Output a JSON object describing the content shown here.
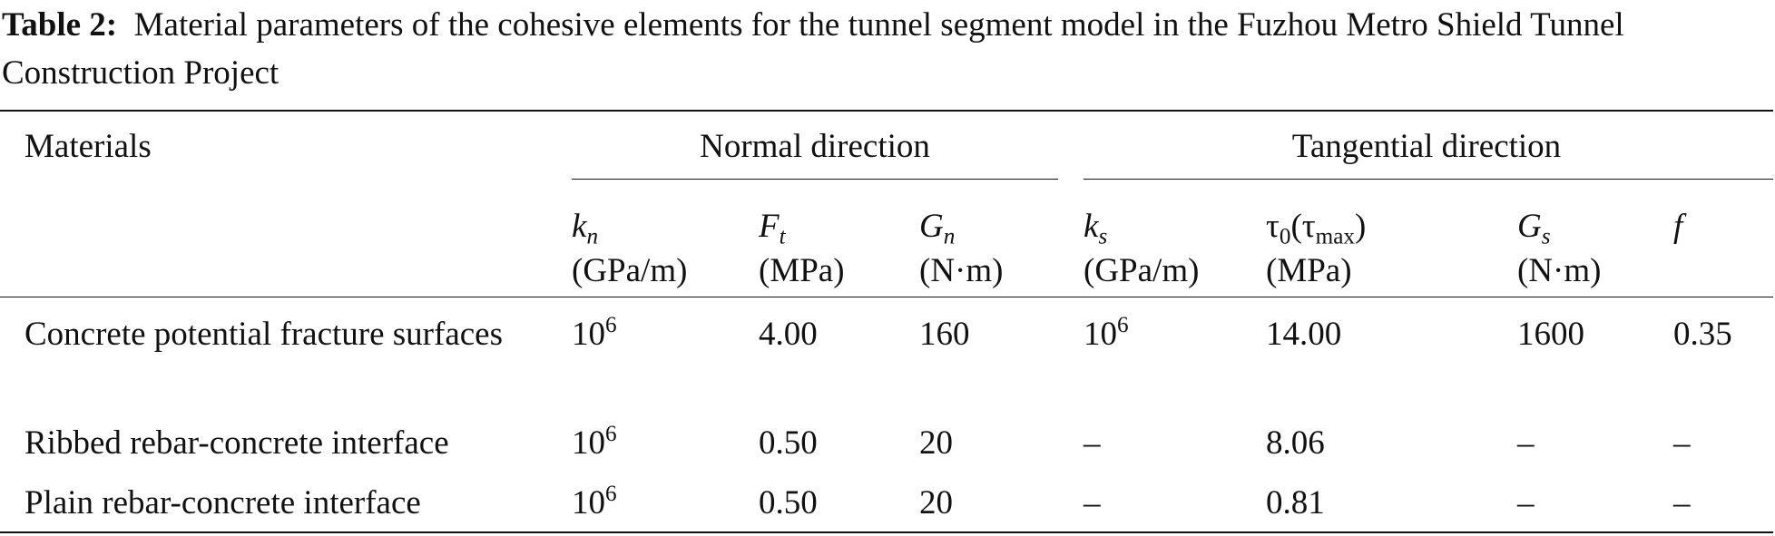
{
  "caption": {
    "label": "Table 2:",
    "text": "Material parameters of the cohesive elements for the tunnel segment model in the Fuzhou Metro Shield Tunnel Construction Project"
  },
  "table": {
    "header": {
      "materials": "Materials",
      "groups": [
        "Normal direction",
        "Tangential direction"
      ],
      "columns": [
        {
          "symbol": [
            {
              "t": "k",
              "style": "i"
            },
            {
              "t": "n",
              "style": "sub-i"
            }
          ],
          "unit": "(GPa/m)"
        },
        {
          "symbol": [
            {
              "t": "F",
              "style": "i"
            },
            {
              "t": "t",
              "style": "sub-i"
            }
          ],
          "unit": "(MPa)"
        },
        {
          "symbol": [
            {
              "t": "G",
              "style": "i"
            },
            {
              "t": "n",
              "style": "sub-i"
            }
          ],
          "unit": "(N·m)"
        },
        {
          "symbol": [
            {
              "t": "k",
              "style": "i"
            },
            {
              "t": "s",
              "style": "sub-i"
            }
          ],
          "unit": "(GPa/m)"
        },
        {
          "symbol": [
            {
              "t": "τ",
              "style": "n"
            },
            {
              "t": "0",
              "style": "sub"
            },
            {
              "t": "(τ",
              "style": "n"
            },
            {
              "t": "max",
              "style": "sub"
            },
            {
              "t": ")",
              "style": "n"
            }
          ],
          "unit": "(MPa)"
        },
        {
          "symbol": [
            {
              "t": "G",
              "style": "i"
            },
            {
              "t": "s",
              "style": "sub-i"
            }
          ],
          "unit": "(N·m)"
        },
        {
          "symbol": [
            {
              "t": "f",
              "style": "i"
            }
          ]
        }
      ]
    },
    "rows": [
      {
        "material": "Concrete potential fracture surfaces",
        "cells": [
          {
            "base": "10",
            "exp": "6"
          },
          "4.00",
          "160",
          {
            "base": "10",
            "exp": "6"
          },
          "14.00",
          "1600",
          "0.35"
        ]
      },
      {
        "material": "Ribbed rebar-concrete interface",
        "cells": [
          {
            "base": "10",
            "exp": "6"
          },
          "0.50",
          "20",
          "–",
          "8.06",
          "–",
          "–"
        ]
      },
      {
        "material": "Plain rebar-concrete interface",
        "cells": [
          {
            "base": "10",
            "exp": "6"
          },
          "0.50",
          "20",
          "–",
          "0.81",
          "–",
          "–"
        ]
      }
    ]
  }
}
